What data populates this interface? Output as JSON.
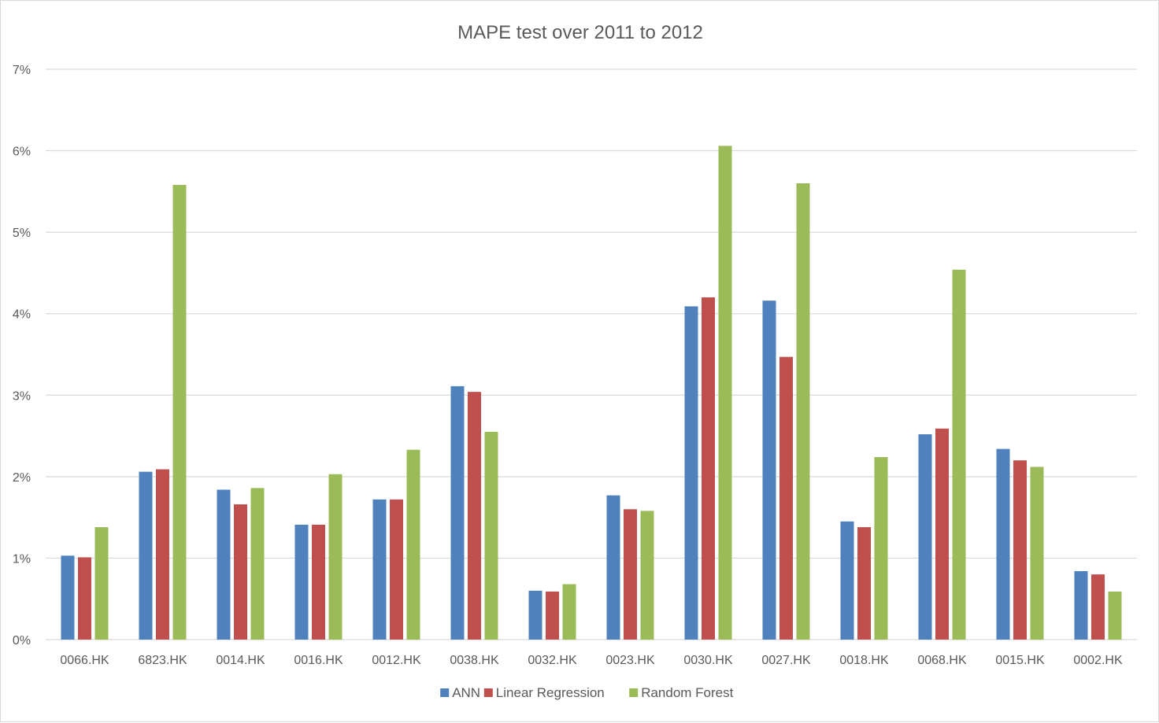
{
  "chart_data": {
    "type": "bar",
    "title": "MAPE test over 2011 to 2012",
    "xlabel": "",
    "ylabel": "",
    "ylim": [
      0,
      7
    ],
    "y_ticks": [
      "0%",
      "1%",
      "2%",
      "3%",
      "4%",
      "5%",
      "6%",
      "7%"
    ],
    "grid": true,
    "legend_position": "bottom",
    "categories": [
      "0066.HK",
      "6823.HK",
      "0014.HK",
      "0016.HK",
      "0012.HK",
      "0038.HK",
      "0032.HK",
      "0023.HK",
      "0030.HK",
      "0027.HK",
      "0018.HK",
      "0068.HK",
      "0015.HK",
      "0002.HK"
    ],
    "series": [
      {
        "name": "ANN",
        "color": "#4f81bd",
        "values": [
          1.03,
          2.06,
          1.84,
          1.41,
          1.72,
          3.11,
          0.6,
          1.77,
          4.09,
          4.16,
          1.45,
          2.52,
          2.34,
          0.84
        ]
      },
      {
        "name": "Linear Regression",
        "color": "#c0504d",
        "values": [
          1.01,
          2.09,
          1.66,
          1.41,
          1.72,
          3.04,
          0.59,
          1.6,
          4.2,
          3.47,
          1.38,
          2.59,
          2.2,
          0.8
        ]
      },
      {
        "name": "Random Forest",
        "color": "#9bbb59",
        "values": [
          1.38,
          5.58,
          1.86,
          2.03,
          2.33,
          2.55,
          0.68,
          1.58,
          6.06,
          5.6,
          2.24,
          4.54,
          2.12,
          0.59
        ]
      }
    ]
  }
}
